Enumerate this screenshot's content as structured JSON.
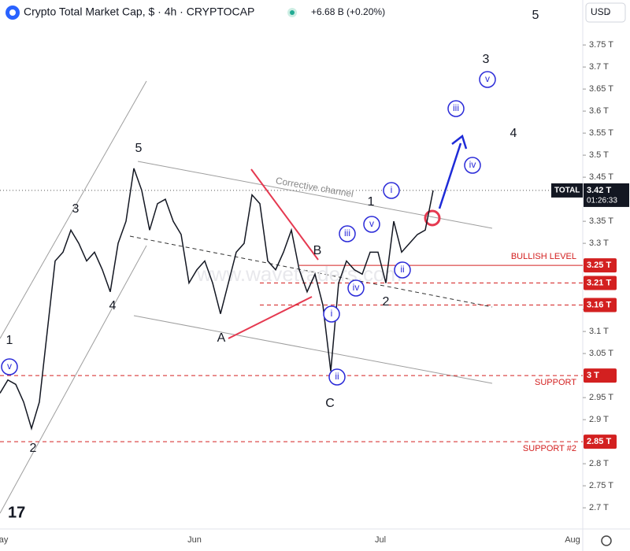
{
  "chart_data": {
    "type": "line",
    "title": "Crypto Total Market Cap, $ · 4h · CRYPTOCAP",
    "change": "+6.68 B (+0.20%)",
    "currency": "USD",
    "watermark": "www.wavetraders.com",
    "color": "#131722",
    "values": [
      2.96,
      2.99,
      2.98,
      2.94,
      2.88,
      2.94,
      3.1,
      3.26,
      3.28,
      3.33,
      3.3,
      3.26,
      3.28,
      3.24,
      3.19,
      3.3,
      3.35,
      3.47,
      3.42,
      3.33,
      3.39,
      3.4,
      3.35,
      3.32,
      3.21,
      3.24,
      3.26,
      3.21,
      3.14,
      3.21,
      3.28,
      3.3,
      3.41,
      3.39,
      3.26,
      3.24,
      3.28,
      3.33,
      3.24,
      3.19,
      3.23,
      3.16,
      3.01,
      3.21,
      3.26,
      3.24,
      3.23,
      3.28,
      3.28,
      3.21,
      3.35,
      3.28,
      3.3,
      3.32,
      3.33,
      3.42
    ],
    "months": [
      "May",
      "Jun",
      "Jul",
      "Aug"
    ],
    "ylim": [
      2.652,
      3.852
    ],
    "yticks": [
      {
        "value": 2.7,
        "label": "2.7 T"
      },
      {
        "value": 2.75,
        "label": "2.75 T"
      },
      {
        "value": 2.8,
        "label": "2.8 T"
      },
      {
        "value": 2.9,
        "label": "2.9 T"
      },
      {
        "value": 2.95,
        "label": "2.95 T"
      },
      {
        "value": 3.05,
        "label": "3.05 T"
      },
      {
        "value": 3.1,
        "label": "3.1 T"
      },
      {
        "value": 3.15,
        "label": "3.15 T"
      },
      {
        "value": 3.3,
        "label": "3.3 T"
      },
      {
        "value": 3.35,
        "label": "3.35 T"
      },
      {
        "value": 3.45,
        "label": "3.45 T"
      },
      {
        "value": 3.5,
        "label": "3.5 T"
      },
      {
        "value": 3.55,
        "label": "3.55 T"
      },
      {
        "value": 3.6,
        "label": "3.6 T"
      },
      {
        "value": 3.65,
        "label": "3.65 T"
      },
      {
        "value": 3.7,
        "label": "3.7 T"
      },
      {
        "value": 3.75,
        "label": "3.75 T"
      }
    ],
    "levels": [
      {
        "value": 3.25,
        "label": "3.25 T",
        "name": "BULLISH LEVEL",
        "style": "solid"
      },
      {
        "value": 3.21,
        "label": "3.21 T",
        "style": "dashed"
      },
      {
        "value": 3.16,
        "label": "3.16 T",
        "style": "dashed"
      },
      {
        "value": 3.0,
        "label": "3 T",
        "name": "SUPPORT",
        "style": "dashed"
      },
      {
        "value": 2.85,
        "label": "2.85 T",
        "name": "SUPPORT #2",
        "style": "dashed"
      }
    ],
    "last_price": {
      "value": 3.42,
      "label": "3.42 T",
      "name": "TOTAL",
      "countdown": "01:26:33"
    },
    "annotations": [
      "5",
      "3",
      "v",
      "iii",
      "4",
      "iv",
      "5",
      "3",
      "1",
      "v",
      "2",
      "4",
      "A",
      "B",
      "C",
      "i",
      "ii",
      "1",
      "i",
      "v",
      "iii",
      "iv",
      "ii",
      "2",
      "Corrective channel"
    ]
  }
}
